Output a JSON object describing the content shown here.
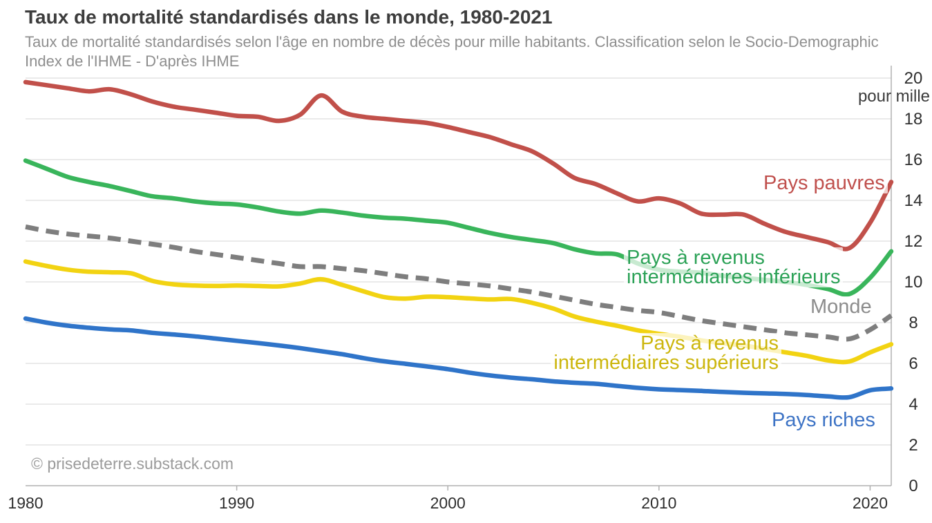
{
  "header": {
    "title": "Taux de mortalité standardisés dans le monde, 1980-2021",
    "subtitle_line1": "Taux de mortalité standardisés selon l'âge en nombre de décès pour mille habitants. Classification selon le Socio-Demographic",
    "subtitle_line2": "Index de l'IHME - D'après IHME"
  },
  "footer": {
    "copyright": "© prisedeterre.substack.com"
  },
  "chart_data": {
    "type": "line",
    "title": "Taux de mortalité standardisés dans le monde, 1980-2021",
    "unit_label": "pour mille",
    "xlabel": "",
    "ylabel": "pour mille",
    "xlim": [
      1980,
      2021
    ],
    "ylim": [
      0,
      20
    ],
    "x_ticks": [
      1980,
      1990,
      2000,
      2010,
      2020
    ],
    "y_ticks": [
      0,
      2,
      4,
      6,
      8,
      10,
      12,
      14,
      16,
      18,
      20
    ],
    "grid": "horizontal",
    "legend_position": "inline-labels",
    "x": [
      1980,
      1981,
      1982,
      1983,
      1984,
      1985,
      1986,
      1987,
      1988,
      1989,
      1990,
      1991,
      1992,
      1993,
      1994,
      1995,
      1996,
      1997,
      1998,
      1999,
      2000,
      2001,
      2002,
      2003,
      2004,
      2005,
      2006,
      2007,
      2008,
      2009,
      2010,
      2011,
      2012,
      2013,
      2014,
      2015,
      2016,
      2017,
      2018,
      2019,
      2020,
      2021
    ],
    "series": [
      {
        "id": "pays-pauvres",
        "name": "Pays pauvres",
        "color": "#c1504a",
        "style": "solid",
        "values": [
          19.8,
          19.65,
          19.5,
          19.35,
          19.45,
          19.2,
          18.85,
          18.6,
          18.45,
          18.3,
          18.15,
          18.1,
          17.9,
          18.2,
          19.15,
          18.35,
          18.1,
          18.0,
          17.9,
          17.8,
          17.6,
          17.35,
          17.1,
          16.75,
          16.4,
          15.8,
          15.1,
          14.8,
          14.35,
          13.95,
          14.1,
          13.85,
          13.35,
          13.3,
          13.3,
          12.85,
          12.45,
          12.2,
          11.95,
          11.65,
          12.9,
          14.9
        ]
      },
      {
        "id": "inter-inf",
        "name": "Pays à revenus intermédiaires inférieurs",
        "color": "#39b55b",
        "style": "solid",
        "values": [
          15.95,
          15.55,
          15.15,
          14.9,
          14.7,
          14.45,
          14.2,
          14.1,
          13.95,
          13.85,
          13.8,
          13.65,
          13.45,
          13.35,
          13.5,
          13.4,
          13.25,
          13.15,
          13.1,
          13.0,
          12.9,
          12.65,
          12.4,
          12.2,
          12.05,
          11.9,
          11.6,
          11.4,
          11.35,
          10.9,
          10.6,
          10.5,
          10.45,
          10.3,
          10.2,
          10.1,
          10.0,
          9.85,
          9.65,
          9.4,
          10.2,
          11.5
        ]
      },
      {
        "id": "monde",
        "name": "Monde",
        "color": "#7e7e7e",
        "style": "dashed",
        "values": [
          12.7,
          12.5,
          12.35,
          12.25,
          12.15,
          12.0,
          11.85,
          11.7,
          11.5,
          11.35,
          11.2,
          11.05,
          10.9,
          10.75,
          10.75,
          10.65,
          10.55,
          10.4,
          10.25,
          10.15,
          10.0,
          9.9,
          9.8,
          9.65,
          9.5,
          9.3,
          9.1,
          8.9,
          8.75,
          8.6,
          8.5,
          8.3,
          8.1,
          7.95,
          7.8,
          7.65,
          7.5,
          7.4,
          7.3,
          7.2,
          7.65,
          8.35
        ]
      },
      {
        "id": "inter-sup",
        "name": "Pays à revenus intermédiaires supérieurs",
        "color": "#f2d312",
        "style": "solid",
        "values": [
          11.0,
          10.78,
          10.6,
          10.5,
          10.47,
          10.42,
          10.05,
          9.88,
          9.82,
          9.8,
          9.82,
          9.8,
          9.78,
          9.92,
          10.13,
          9.85,
          9.54,
          9.25,
          9.18,
          9.27,
          9.25,
          9.19,
          9.14,
          9.16,
          8.97,
          8.69,
          8.3,
          8.05,
          7.85,
          7.62,
          7.45,
          7.31,
          7.13,
          6.99,
          6.88,
          6.71,
          6.54,
          6.37,
          6.15,
          6.09,
          6.54,
          6.94
        ]
      },
      {
        "id": "pays-riches",
        "name": "Pays riches",
        "color": "#2f74c9",
        "style": "solid",
        "values": [
          8.2,
          8.0,
          7.85,
          7.75,
          7.67,
          7.62,
          7.5,
          7.42,
          7.33,
          7.22,
          7.11,
          7.0,
          6.88,
          6.75,
          6.6,
          6.45,
          6.26,
          6.1,
          5.98,
          5.85,
          5.72,
          5.55,
          5.41,
          5.3,
          5.22,
          5.12,
          5.05,
          5.0,
          4.9,
          4.8,
          4.73,
          4.69,
          4.65,
          4.6,
          4.56,
          4.53,
          4.5,
          4.45,
          4.38,
          4.34,
          4.68,
          4.77
        ]
      }
    ],
    "labels": {
      "pays_pauvres": "Pays pauvres",
      "inter_inf_line1": "Pays à revenus",
      "inter_inf_line2": "intermédiaires inférieurs",
      "monde": "Monde",
      "inter_sup_line1": "Pays à revenus",
      "inter_sup_line2": "intermédiaires supérieurs",
      "pays_riches": "Pays riches"
    }
  }
}
